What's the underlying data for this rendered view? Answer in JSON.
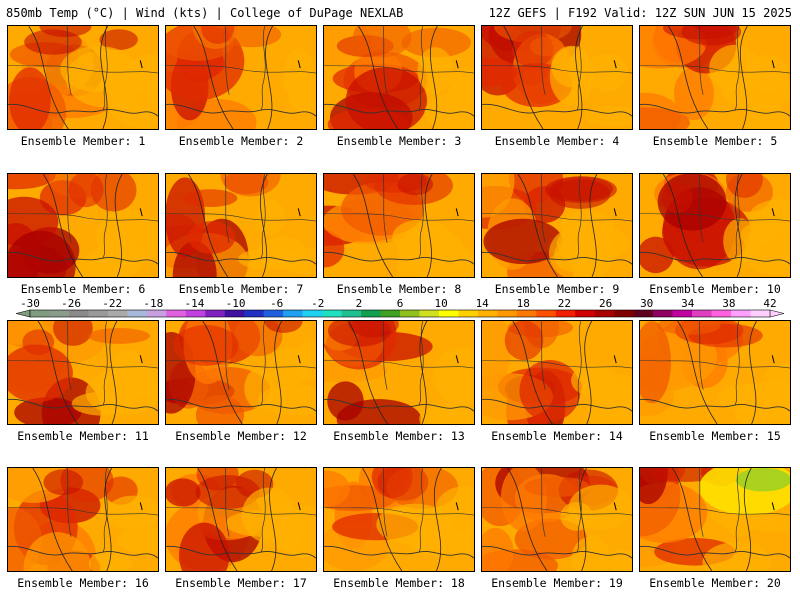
{
  "header": {
    "left": "850mb Temp (°C) | Wind (kts) | College of DuPage NEXLAB",
    "right": "12Z GEFS | F192 Valid: 12Z SUN JUN 15 2025"
  },
  "panels": [
    {
      "caption": "Ensemble Member: 1"
    },
    {
      "caption": "Ensemble Member: 2"
    },
    {
      "caption": "Ensemble Member: 3"
    },
    {
      "caption": "Ensemble Member: 4"
    },
    {
      "caption": "Ensemble Member: 5"
    },
    {
      "caption": "Ensemble Member: 6"
    },
    {
      "caption": "Ensemble Member: 7"
    },
    {
      "caption": "Ensemble Member: 8"
    },
    {
      "caption": "Ensemble Member: 9"
    },
    {
      "caption": "Ensemble Member: 10"
    },
    {
      "caption": "Ensemble Member: 11"
    },
    {
      "caption": "Ensemble Member: 12"
    },
    {
      "caption": "Ensemble Member: 13"
    },
    {
      "caption": "Ensemble Member: 14"
    },
    {
      "caption": "Ensemble Member: 15"
    },
    {
      "caption": "Ensemble Member: 16"
    },
    {
      "caption": "Ensemble Member: 17"
    },
    {
      "caption": "Ensemble Member: 18"
    },
    {
      "caption": "Ensemble Member: 19"
    },
    {
      "caption": "Ensemble Member: 20"
    }
  ],
  "colorbar": {
    "labels": [
      "-30",
      "-26",
      "-22",
      "-18",
      "-14",
      "-10",
      "-6",
      "-2",
      "2",
      "6",
      "10",
      "14",
      "18",
      "22",
      "26",
      "30",
      "34",
      "38",
      "42"
    ],
    "colors": [
      "#7f9c7f",
      "#8c9c8c",
      "#8a8a8a",
      "#9a9a9a",
      "#aaaaaa",
      "#a8b8d8",
      "#c8a0e0",
      "#e060e0",
      "#c040e0",
      "#8020c0",
      "#4010a0",
      "#2030c0",
      "#2060e0",
      "#20a0f0",
      "#20d0f0",
      "#20e0c0",
      "#20c090",
      "#10a050",
      "#40a020",
      "#90c020",
      "#d0e020",
      "#ffff00",
      "#ffd000",
      "#ffb000",
      "#ff9800",
      "#ff7800",
      "#ff5000",
      "#f02000",
      "#d00000",
      "#a80000",
      "#800000",
      "#600020",
      "#900060",
      "#c000a0",
      "#e040c0",
      "#ff60e0",
      "#ffa0ff",
      "#ffd0ff"
    ]
  }
}
